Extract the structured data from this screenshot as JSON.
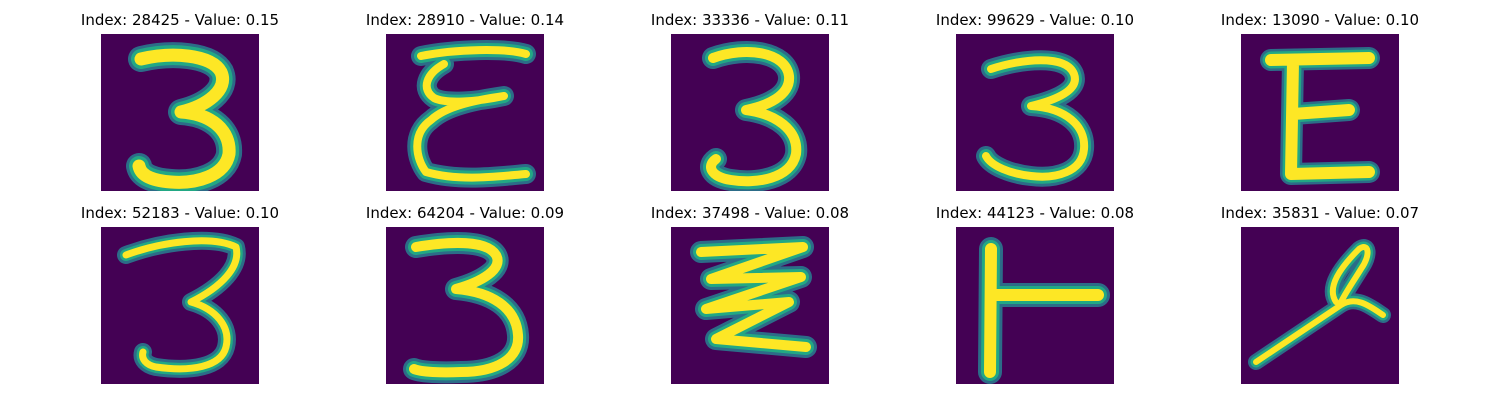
{
  "colors": {
    "background": "#440154",
    "stroke_core": "#fde725",
    "stroke_glow": "#22a884",
    "stroke_halo": "#2a788e"
  },
  "panels": [
    {
      "title": "Index: 28425 - Value: 0.15",
      "glyph": "3"
    },
    {
      "title": "Index: 28910 - Value: 0.14",
      "glyph": "3"
    },
    {
      "title": "Index: 33336 - Value: 0.11",
      "glyph": "3"
    },
    {
      "title": "Index: 99629 - Value: 0.10",
      "glyph": "3"
    },
    {
      "title": "Index: 13090 - Value: 0.10",
      "glyph": "E"
    },
    {
      "title": "Index: 52183 - Value: 0.10",
      "glyph": "3"
    },
    {
      "title": "Index: 64204 - Value: 0.09",
      "glyph": "3"
    },
    {
      "title": "Index: 37498 - Value: 0.08",
      "glyph": "3"
    },
    {
      "title": "Index: 44123 - Value: 0.08",
      "glyph": "T"
    },
    {
      "title": "Index: 35831 - Value: 0.07",
      "glyph": "4"
    }
  ]
}
